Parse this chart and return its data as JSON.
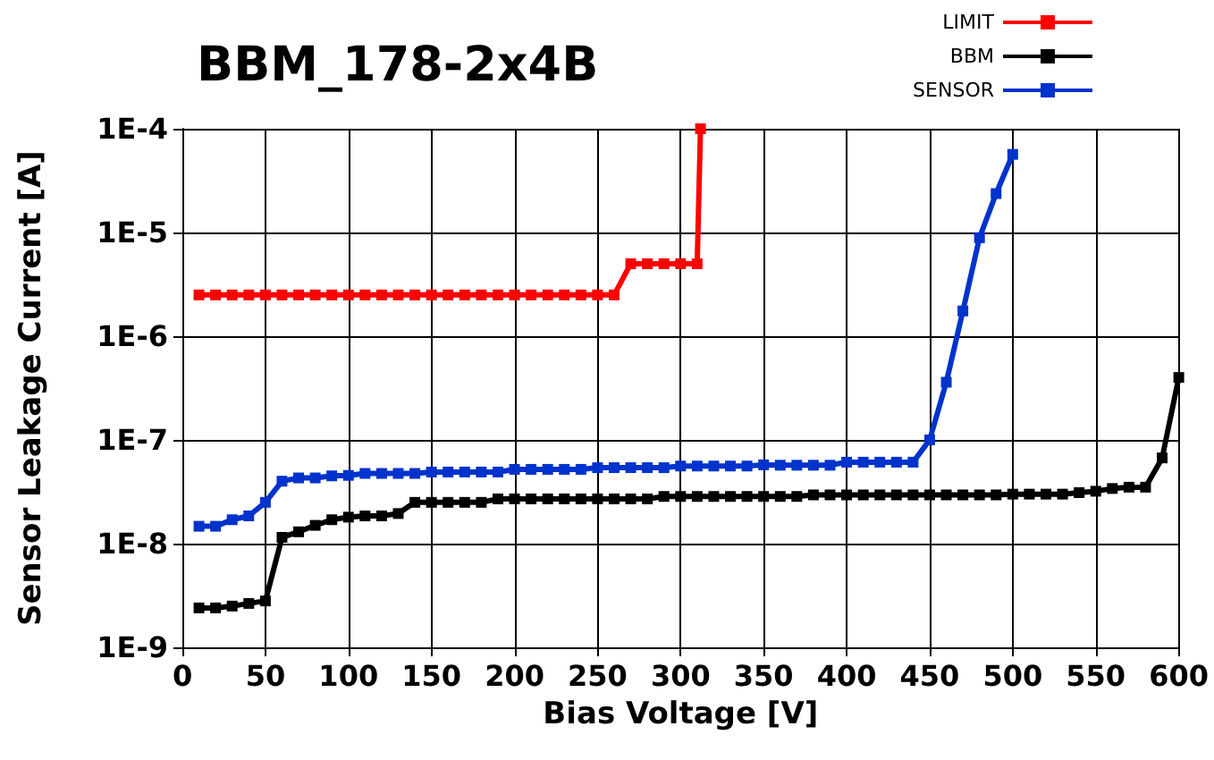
{
  "chart_data": {
    "type": "line",
    "title": "BBM_178-2x4B",
    "xlabel": "Bias Voltage [V]",
    "ylabel": "Sensor Leakage Current [A]",
    "log": "y",
    "grid": true,
    "legend": "top right",
    "marker": "square",
    "line_style": "solid",
    "xlim": [
      0,
      600
    ],
    "xticks": [
      0,
      50,
      100,
      150,
      200,
      250,
      300,
      350,
      400,
      450,
      500,
      550,
      600
    ],
    "ylim": [
      1e-09,
      0.0001
    ],
    "yticks": [
      {
        "value": 1e-09,
        "label": "1E-9"
      },
      {
        "value": 1e-08,
        "label": "1E-8"
      },
      {
        "value": 1e-07,
        "label": "1E-7"
      },
      {
        "value": 1e-06,
        "label": "1E-6"
      },
      {
        "value": 1e-05,
        "label": "1E-5"
      },
      {
        "value": 0.0001,
        "label": "1E-4"
      }
    ],
    "series": [
      {
        "name": "LIMIT",
        "color": "#ff0000",
        "x": [
          10,
          20,
          30,
          40,
          50,
          60,
          70,
          80,
          90,
          100,
          110,
          120,
          130,
          140,
          150,
          160,
          170,
          180,
          190,
          200,
          210,
          220,
          230,
          240,
          250,
          260,
          270,
          280,
          290,
          300,
          310,
          312
        ],
        "values": [
          2.5e-06,
          2.5e-06,
          2.5e-06,
          2.5e-06,
          2.5e-06,
          2.5e-06,
          2.5e-06,
          2.5e-06,
          2.5e-06,
          2.5e-06,
          2.5e-06,
          2.5e-06,
          2.5e-06,
          2.5e-06,
          2.5e-06,
          2.5e-06,
          2.5e-06,
          2.5e-06,
          2.5e-06,
          2.5e-06,
          2.5e-06,
          2.5e-06,
          2.5e-06,
          2.5e-06,
          2.5e-06,
          2.5e-06,
          5e-06,
          5e-06,
          5e-06,
          5e-06,
          5e-06,
          0.0001
        ]
      },
      {
        "name": "BBM",
        "color": "#000000",
        "x": [
          10,
          20,
          30,
          40,
          50,
          60,
          70,
          80,
          90,
          100,
          110,
          120,
          130,
          140,
          150,
          160,
          170,
          180,
          190,
          200,
          210,
          220,
          230,
          240,
          250,
          260,
          270,
          280,
          290,
          300,
          310,
          320,
          330,
          340,
          350,
          360,
          370,
          380,
          390,
          400,
          410,
          420,
          430,
          440,
          450,
          460,
          470,
          480,
          490,
          500,
          510,
          520,
          530,
          540,
          550,
          560,
          570,
          580,
          590,
          600
        ],
        "values": [
          2.4e-09,
          2.4e-09,
          2.5e-09,
          2.65e-09,
          2.8e-09,
          1.15e-08,
          1.3e-08,
          1.5e-08,
          1.7e-08,
          1.8e-08,
          1.85e-08,
          1.85e-08,
          1.95e-08,
          2.5e-08,
          2.5e-08,
          2.5e-08,
          2.5e-08,
          2.5e-08,
          2.7e-08,
          2.7e-08,
          2.7e-08,
          2.7e-08,
          2.7e-08,
          2.7e-08,
          2.7e-08,
          2.7e-08,
          2.7e-08,
          2.7e-08,
          2.85e-08,
          2.85e-08,
          2.85e-08,
          2.85e-08,
          2.85e-08,
          2.85e-08,
          2.85e-08,
          2.85e-08,
          2.85e-08,
          2.95e-08,
          2.95e-08,
          2.95e-08,
          2.95e-08,
          2.95e-08,
          2.95e-08,
          2.95e-08,
          2.95e-08,
          2.95e-08,
          2.95e-08,
          2.95e-08,
          2.95e-08,
          3e-08,
          3e-08,
          3e-08,
          3e-08,
          3.1e-08,
          3.2e-08,
          3.4e-08,
          3.5e-08,
          3.5e-08,
          6.7e-08,
          4e-07
        ]
      },
      {
        "name": "SENSOR",
        "color": "#0033cc",
        "x": [
          10,
          20,
          30,
          40,
          50,
          60,
          70,
          80,
          90,
          100,
          110,
          120,
          130,
          140,
          150,
          160,
          170,
          180,
          190,
          200,
          210,
          220,
          230,
          240,
          250,
          260,
          270,
          280,
          290,
          300,
          310,
          320,
          330,
          340,
          350,
          360,
          370,
          380,
          390,
          400,
          410,
          420,
          430,
          440,
          450,
          460,
          470,
          480,
          490,
          500
        ],
        "values": [
          1.47e-08,
          1.47e-08,
          1.7e-08,
          1.85e-08,
          2.5e-08,
          4e-08,
          4.3e-08,
          4.3e-08,
          4.5e-08,
          4.55e-08,
          4.75e-08,
          4.75e-08,
          4.75e-08,
          4.75e-08,
          4.9e-08,
          4.9e-08,
          4.9e-08,
          4.9e-08,
          4.9e-08,
          5.2e-08,
          5.2e-08,
          5.2e-08,
          5.2e-08,
          5.2e-08,
          5.4e-08,
          5.4e-08,
          5.4e-08,
          5.4e-08,
          5.4e-08,
          5.6e-08,
          5.6e-08,
          5.6e-08,
          5.6e-08,
          5.6e-08,
          5.75e-08,
          5.7e-08,
          5.7e-08,
          5.7e-08,
          5.7e-08,
          6.1e-08,
          6.1e-08,
          6.1e-08,
          6.1e-08,
          6.1e-08,
          1e-07,
          3.6e-07,
          1.75e-06,
          8.9e-06,
          2.37e-05,
          5.66e-05
        ]
      }
    ]
  }
}
